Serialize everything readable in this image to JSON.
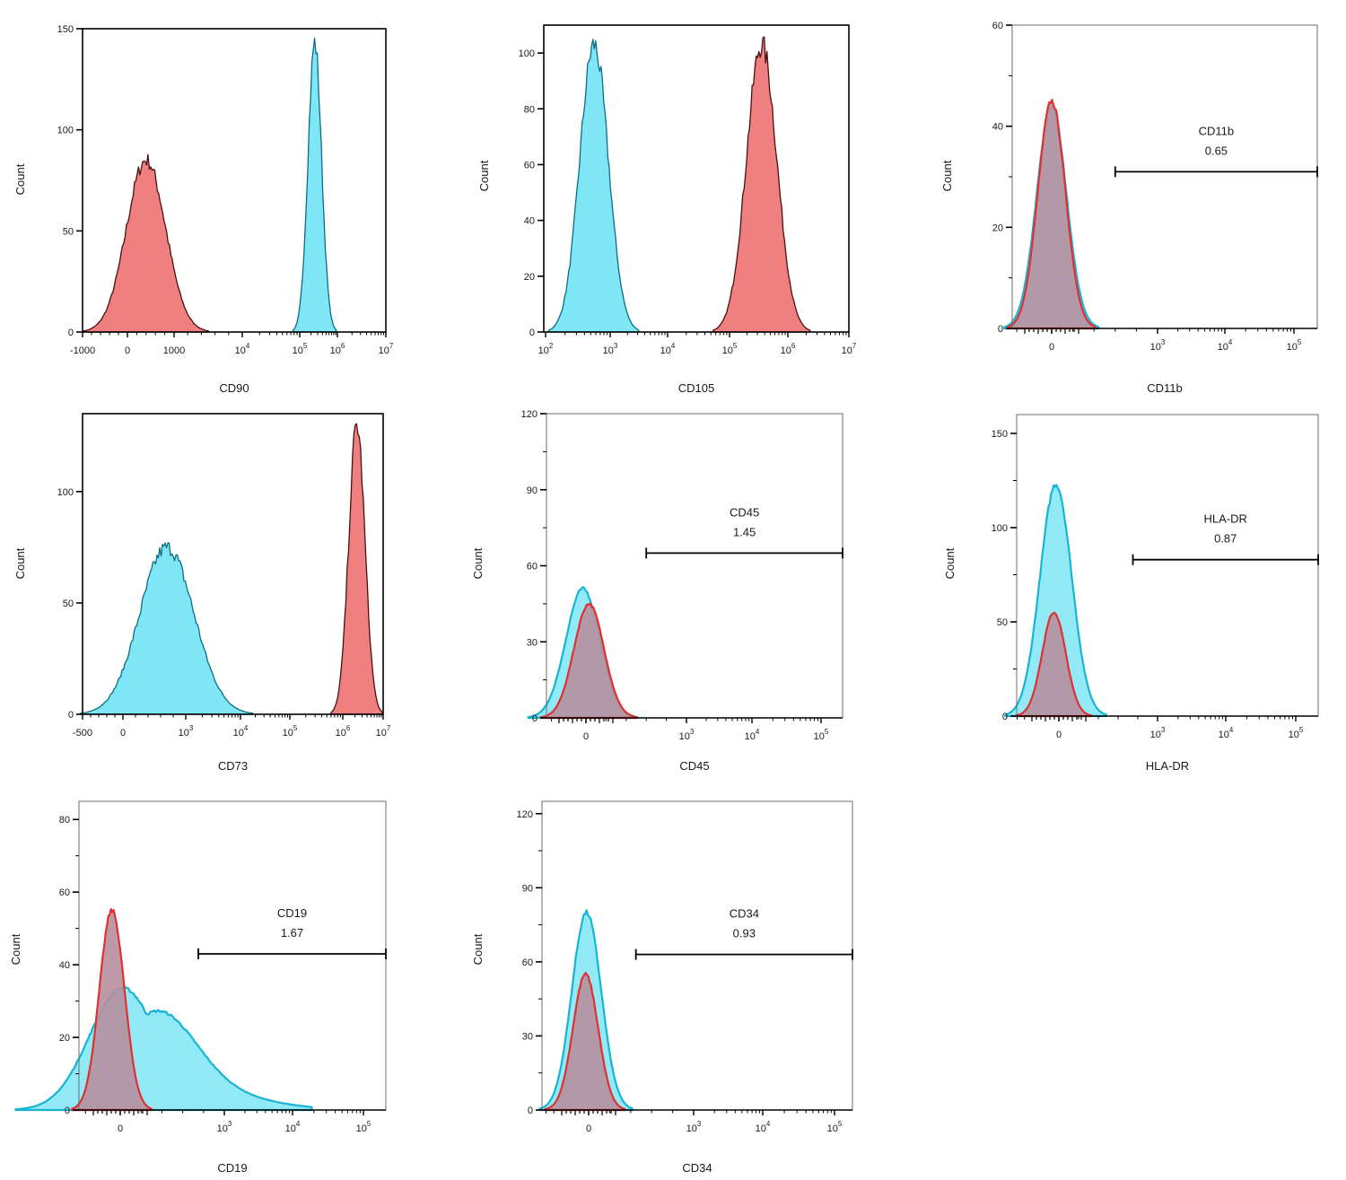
{
  "figure": {
    "colors": {
      "red_fill": "#f08080",
      "red_line": "#e03030",
      "red_edge": "#4a1010",
      "cyan_fill": "#7fe6f5",
      "cyan_line": "#18b4d4",
      "cyan_edge": "#0c6e84",
      "overlap_fill": "#b78f9f",
      "axis": "#000000"
    }
  },
  "chart_data": [
    {
      "id": "cd90",
      "type": "area",
      "xlabel": "CD90",
      "ylabel": "Count",
      "xscale": "biexponential",
      "ylim": [
        0,
        150
      ],
      "yticks": [
        "0",
        "50",
        "100",
        "150"
      ],
      "xticks": [
        "-1000",
        "0",
        "1000",
        "10^4",
        "10^5",
        "10^6",
        "10^7"
      ],
      "style": "dark-edge",
      "gate": null,
      "series": [
        {
          "color": "red",
          "peak_at_tick": 1.4,
          "spread": 0.42,
          "height": 85
        },
        {
          "color": "cyan",
          "peak_at_tick": 4.4,
          "spread": 0.18,
          "height": 143
        }
      ]
    },
    {
      "id": "cd105",
      "type": "area",
      "xlabel": "CD105",
      "ylabel": "Count",
      "xscale": "log",
      "ylim": [
        0,
        110
      ],
      "yticks": [
        "0",
        "20",
        "40",
        "60",
        "80",
        "100"
      ],
      "xticks": [
        "10^2",
        "10^3",
        "10^4",
        "10^5",
        "10^6",
        "10^7"
      ],
      "style": "dark-edge",
      "gate": null,
      "series": [
        {
          "color": "cyan",
          "peak_at_tick": 0.75,
          "spread": 0.22,
          "height": 103
        },
        {
          "color": "red",
          "peak_at_tick": 3.55,
          "spread": 0.26,
          "height": 103
        }
      ]
    },
    {
      "id": "cd11b",
      "type": "area",
      "xlabel": "CD11b",
      "ylabel": "Count",
      "xscale": "biexponential",
      "ylim": [
        0,
        60
      ],
      "yticks": [
        "0",
        "20",
        "40",
        "60"
      ],
      "xticks": [
        "0",
        "10^3",
        "10^4",
        "10^5"
      ],
      "style": "overlay",
      "gate": {
        "name": "CD11b",
        "value": "0.65",
        "from_tick": 0.6,
        "level": 31
      },
      "series": [
        {
          "color": "cyan",
          "peak_at_tick": 0.0,
          "spread": 0.14,
          "height": 44
        },
        {
          "color": "red",
          "peak_at_tick": 0.0,
          "spread": 0.13,
          "height": 45
        }
      ]
    },
    {
      "id": "cd73",
      "type": "area",
      "xlabel": "CD73",
      "ylabel": "Count",
      "xscale": "biexponential",
      "ylim": [
        0,
        135
      ],
      "yticks": [
        "0",
        "50",
        "100"
      ],
      "xticks": [
        "-500",
        "0",
        "10^3",
        "10^4",
        "10^5",
        "10^6",
        "10^7"
      ],
      "style": "dark-edge",
      "gate": null,
      "series": [
        {
          "color": "cyan",
          "peak_at_tick": 1.7,
          "spread": 0.45,
          "height": 75
        },
        {
          "color": "red",
          "peak_at_tick": 5.35,
          "spread": 0.2,
          "height": 130
        }
      ]
    },
    {
      "id": "cd45",
      "type": "area",
      "xlabel": "CD45",
      "ylabel": "Count",
      "xscale": "biexponential",
      "ylim": [
        0,
        120
      ],
      "yticks": [
        "0",
        "30",
        "60",
        "90",
        "120"
      ],
      "xticks": [
        "0",
        "10^3",
        "10^4",
        "10^5"
      ],
      "style": "overlay",
      "gate": {
        "name": "CD45",
        "value": "1.45",
        "from_tick": 0.6,
        "level": 65
      },
      "series": [
        {
          "color": "cyan",
          "peak_at_tick": -0.03,
          "spread": 0.17,
          "height": 51
        },
        {
          "color": "red",
          "peak_at_tick": 0.03,
          "spread": 0.15,
          "height": 45
        }
      ]
    },
    {
      "id": "hladr",
      "type": "area",
      "xlabel": "HLA-DR",
      "ylabel": "Count",
      "xscale": "biexponential",
      "ylim": [
        0,
        160
      ],
      "yticks": [
        "0",
        "50",
        "100",
        "150"
      ],
      "xticks": [
        "0",
        "10^3",
        "10^4",
        "10^5"
      ],
      "style": "overlay",
      "gate": {
        "name": "HLA-DR",
        "value": "0.87",
        "from_tick": 0.75,
        "level": 83
      },
      "series": [
        {
          "color": "cyan",
          "peak_at_tick": -0.03,
          "spread": 0.16,
          "height": 123
        },
        {
          "color": "red",
          "peak_at_tick": -0.05,
          "spread": 0.12,
          "height": 55
        }
      ]
    },
    {
      "id": "cd19",
      "type": "area",
      "xlabel": "CD19",
      "ylabel": "Count",
      "xscale": "biexponential",
      "ylim": [
        0,
        85
      ],
      "yticks": [
        "0",
        "20",
        "40",
        "60",
        "80"
      ],
      "xticks": [
        "0",
        "10^3",
        "10^4",
        "10^5"
      ],
      "style": "overlay",
      "gate": {
        "name": "CD19",
        "value": "1.67",
        "from_tick": 0.75,
        "level": 43
      },
      "series": [
        {
          "color": "cyan",
          "peak_at_tick": 0.02,
          "spread": 0.32,
          "height": 33,
          "shoulder": 0.25
        },
        {
          "color": "red",
          "peak_at_tick": -0.08,
          "spread": 0.12,
          "height": 55
        }
      ]
    },
    {
      "id": "cd34",
      "type": "area",
      "xlabel": "CD34",
      "ylabel": "Count",
      "xscale": "biexponential",
      "ylim": [
        0,
        125
      ],
      "yticks": [
        "0",
        "30",
        "60",
        "90",
        "120"
      ],
      "xticks": [
        "0",
        "10^3",
        "10^4",
        "10^5"
      ],
      "style": "overlay",
      "gate": {
        "name": "CD34",
        "value": "0.93",
        "from_tick": 0.45,
        "level": 63
      },
      "series": [
        {
          "color": "cyan",
          "peak_at_tick": -0.02,
          "spread": 0.14,
          "height": 80
        },
        {
          "color": "red",
          "peak_at_tick": -0.03,
          "spread": 0.12,
          "height": 55
        }
      ]
    }
  ]
}
